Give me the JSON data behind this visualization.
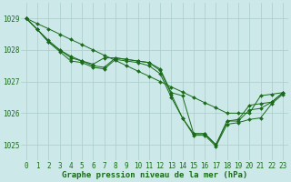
{
  "title": "Graphe pression niveau de la mer (hPa)",
  "x": [
    0,
    1,
    2,
    3,
    4,
    5,
    6,
    7,
    8,
    9,
    10,
    11,
    12,
    13,
    14,
    15,
    16,
    17,
    18,
    19,
    20,
    21,
    22,
    23
  ],
  "line1": [
    1029.0,
    1028.65,
    1028.3,
    1028.0,
    1027.8,
    1027.65,
    1027.55,
    1027.75,
    1027.75,
    1027.7,
    1027.65,
    1027.6,
    1027.4,
    1026.65,
    1026.55,
    1025.35,
    1025.35,
    1025.0,
    1025.75,
    1025.8,
    1026.25,
    1026.3,
    1026.35,
    1026.65
  ],
  "line2": [
    1029.0,
    1028.65,
    1028.25,
    1028.0,
    1027.75,
    1027.65,
    1027.5,
    1027.45,
    1027.75,
    1027.7,
    1027.65,
    1027.6,
    1027.35,
    1026.6,
    1025.85,
    1025.35,
    1025.35,
    1025.0,
    1025.75,
    1025.75,
    1026.1,
    1026.15,
    1026.35,
    1026.65
  ],
  "line3": [
    1029.0,
    1028.65,
    1028.25,
    1027.95,
    1027.65,
    1027.6,
    1027.45,
    1027.4,
    1027.7,
    1027.65,
    1027.6,
    1027.5,
    1027.25,
    1026.5,
    1025.85,
    1025.3,
    1025.3,
    1024.95,
    1025.65,
    1025.7,
    1025.8,
    1025.85,
    1026.3,
    1026.6
  ],
  "line_straight": [
    1029.0,
    1028.83,
    1028.67,
    1028.5,
    1028.33,
    1028.17,
    1028.0,
    1027.83,
    1027.67,
    1027.5,
    1027.33,
    1027.17,
    1027.0,
    1026.83,
    1026.67,
    1026.5,
    1026.33,
    1026.17,
    1026.0,
    1026.0,
    1026.0,
    1026.55,
    1026.6,
    1026.65
  ],
  "ylim": [
    1024.5,
    1029.5
  ],
  "yticks": [
    1025,
    1026,
    1027,
    1028,
    1029
  ],
  "xticks": [
    0,
    1,
    2,
    3,
    4,
    5,
    6,
    7,
    8,
    9,
    10,
    11,
    12,
    13,
    14,
    15,
    16,
    17,
    18,
    19,
    20,
    21,
    22,
    23
  ],
  "line_color": "#1a6b1a",
  "bg_color": "#cce8e8",
  "grid_color": "#aacccc",
  "title_color": "#1a6b1a",
  "title_fontsize": 6.5,
  "tick_fontsize": 5.5
}
